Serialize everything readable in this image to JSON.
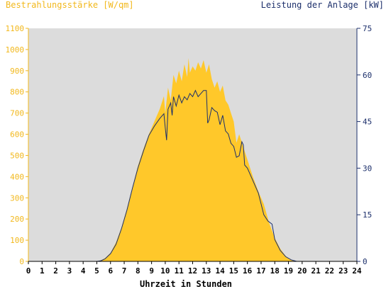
{
  "colors": {
    "left_axis": "#f2b81c",
    "right_axis": "#1c2f6b",
    "fill": "#ffc82a",
    "line": "#1c2f6b",
    "plot_bg": "#dcdcdc",
    "x_axis": "#000000"
  },
  "chart_data": {
    "type": "area",
    "title_left": "Bestrahlungsstärke [W/qm]",
    "title_right": "Leistung der Anlage [kW]",
    "xlabel": "Uhrzeit in Stunden",
    "xlim": [
      0,
      24
    ],
    "x_ticks": [
      "0",
      "1",
      "2",
      "3",
      "4",
      "5",
      "6",
      "7",
      "8",
      "9",
      "10",
      "11",
      "12",
      "13",
      "14",
      "15",
      "16",
      "17",
      "18",
      "19",
      "20",
      "21",
      "22",
      "23",
      "24"
    ],
    "y_left": {
      "lim": [
        0,
        1100
      ],
      "ticks": [
        "0",
        "100",
        "200",
        "300",
        "400",
        "500",
        "600",
        "700",
        "800",
        "900",
        "1000",
        "1100"
      ]
    },
    "y_right": {
      "lim": [
        0,
        75
      ],
      "ticks": [
        "0",
        "15",
        "30",
        "45",
        "60",
        "75"
      ]
    },
    "series": [
      {
        "name": "Bestrahlungsstärke [W/qm]",
        "axis": "left",
        "style": "area",
        "x": [
          0,
          5.0,
          5.3,
          5.6,
          6.0,
          6.4,
          6.8,
          7.2,
          7.6,
          8.0,
          8.4,
          8.8,
          9.2,
          9.6,
          9.9,
          10.0,
          10.2,
          10.4,
          10.6,
          10.8,
          11.0,
          11.2,
          11.4,
          11.6,
          11.7,
          11.8,
          12.0,
          12.2,
          12.4,
          12.6,
          12.8,
          13.0,
          13.2,
          13.4,
          13.6,
          13.8,
          14.0,
          14.2,
          14.4,
          14.6,
          14.8,
          15.0,
          15.2,
          15.4,
          15.6,
          15.8,
          16.0,
          16.4,
          16.8,
          17.2,
          17.6,
          18.0,
          18.4,
          18.8,
          19.2,
          19.6,
          24
        ],
        "y": [
          0,
          0,
          5,
          15,
          40,
          90,
          160,
          250,
          350,
          450,
          530,
          600,
          660,
          720,
          780,
          700,
          820,
          760,
          880,
          840,
          900,
          850,
          930,
          870,
          960,
          890,
          920,
          900,
          940,
          910,
          950,
          890,
          930,
          860,
          820,
          850,
          800,
          830,
          760,
          740,
          700,
          660,
          560,
          600,
          560,
          520,
          480,
          400,
          330,
          270,
          180,
          110,
          60,
          25,
          5,
          0,
          0
        ]
      },
      {
        "name": "Leistung der Anlage [kW]",
        "axis": "right",
        "style": "line",
        "x": [
          0,
          5.0,
          5.3,
          5.6,
          6.0,
          6.4,
          6.8,
          7.2,
          7.6,
          8.0,
          8.4,
          8.8,
          9.2,
          9.6,
          9.9,
          10.0,
          10.1,
          10.2,
          10.4,
          10.5,
          10.6,
          10.8,
          11.0,
          11.2,
          11.4,
          11.6,
          11.8,
          12.0,
          12.2,
          12.4,
          12.6,
          12.8,
          13.0,
          13.1,
          13.2,
          13.4,
          13.6,
          13.8,
          14.0,
          14.2,
          14.4,
          14.6,
          14.8,
          15.0,
          15.2,
          15.4,
          15.6,
          15.7,
          15.8,
          16.0,
          16.4,
          16.8,
          17.2,
          17.5,
          17.8,
          18.0,
          18.4,
          18.8,
          19.2,
          19.6,
          24
        ],
        "y": [
          0,
          0,
          0.2,
          0.8,
          2.5,
          5.5,
          10.5,
          16.5,
          23.5,
          30,
          35.5,
          40.5,
          43.5,
          46,
          47.5,
          43,
          39,
          49,
          51,
          47,
          53,
          50,
          53.5,
          51,
          53,
          52,
          54,
          53,
          55,
          53,
          54,
          55,
          55,
          44.5,
          45.5,
          49.5,
          48.5,
          48,
          44,
          47,
          42,
          41,
          38,
          37,
          33.5,
          34,
          38.5,
          37.5,
          31,
          30,
          26,
          22,
          15,
          13,
          12,
          7,
          3.5,
          1.5,
          0.5,
          0,
          0
        ]
      }
    ]
  }
}
